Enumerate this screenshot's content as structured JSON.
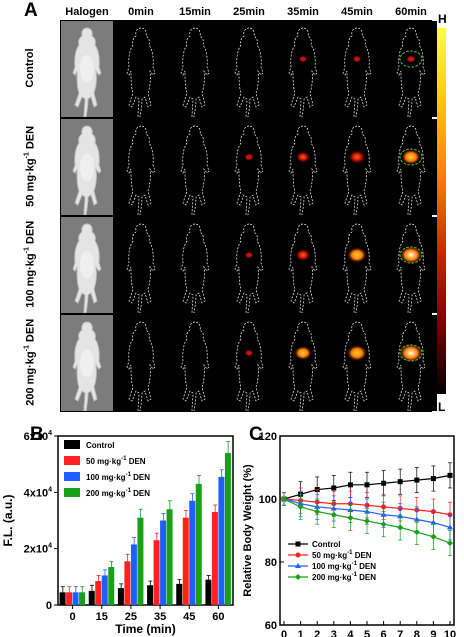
{
  "panel_a": {
    "letter": "A",
    "columns": [
      "Halogen",
      "0min",
      "15min",
      "25min",
      "35min",
      "45min",
      "60min"
    ],
    "rows": [
      {
        "label": "Control",
        "sup": "",
        "suffix": ""
      },
      {
        "label": "50 mg·kg",
        "sup": "-1",
        "suffix": " DEN"
      },
      {
        "label": "100 mg·kg",
        "sup": "-1",
        "suffix": " DEN"
      },
      {
        "label": "200 mg·kg",
        "sup": "-1",
        "suffix": " DEN"
      }
    ],
    "signal_levels": [
      [
        0,
        0,
        0,
        0.15,
        0.15,
        0.2
      ],
      [
        0,
        0,
        0.2,
        0.45,
        0.6,
        0.75
      ],
      [
        0,
        0,
        0.15,
        0.5,
        0.75,
        0.95
      ],
      [
        0,
        0,
        0.15,
        0.65,
        0.8,
        1.0
      ]
    ],
    "colorbar_high": "H",
    "colorbar_low": "L",
    "colors": {
      "dashed_circle": "#45c845",
      "outline": "#ffffff"
    }
  },
  "panel_b": {
    "letter": "B"
  },
  "panel_c": {
    "letter": "C"
  },
  "chart_data": [
    {
      "type": "bar",
      "categories": [
        "0",
        "15",
        "25",
        "35",
        "45",
        "60"
      ],
      "xlabel": "Time (min)",
      "ylabel": "F.L. (a.u.)",
      "ylim": [
        0,
        60000
      ],
      "yticks": [
        "0",
        "2x10",
        "4x10",
        "6x10"
      ],
      "ytick_exp": "4",
      "legend_placement": "top-left",
      "series": [
        {
          "name": "Control",
          "sup": "",
          "suffix": "",
          "color": "#000000",
          "values": [
            4500,
            5000,
            6000,
            7000,
            7500,
            9000
          ],
          "errors": [
            2000,
            2000,
            1500,
            1500,
            1500,
            1500
          ]
        },
        {
          "name": "50 mg·kg",
          "sup": "-1",
          "suffix": " DEN",
          "color": "#ff2020",
          "values": [
            4500,
            8500,
            15500,
            23000,
            31000,
            33000
          ],
          "errors": [
            2000,
            2000,
            2500,
            2500,
            2500,
            2500
          ]
        },
        {
          "name": "100 mg·kg",
          "sup": "-1",
          "suffix": " DEN",
          "color": "#1f5fff",
          "values": [
            4500,
            10500,
            21500,
            30000,
            37000,
            45500
          ],
          "errors": [
            2000,
            2000,
            2500,
            2500,
            2500,
            2500
          ]
        },
        {
          "name": "200 mg·kg",
          "sup": "-1",
          "suffix": " DEN",
          "color": "#18a018",
          "values": [
            4500,
            13500,
            31000,
            34000,
            43000,
            54000
          ],
          "errors": [
            2000,
            2000,
            3000,
            3000,
            3000,
            4000
          ]
        }
      ]
    },
    {
      "type": "line",
      "x": [
        0,
        1,
        2,
        3,
        4,
        5,
        6,
        7,
        8,
        9,
        10
      ],
      "xlabel": "Time (day)",
      "ylabel": "Relative Body Weight (%)",
      "ylim": [
        60,
        120
      ],
      "xlim": [
        0,
        10
      ],
      "yticks": [
        60,
        80,
        100,
        120
      ],
      "legend_placement": "bottom-left",
      "series": [
        {
          "name": "Control",
          "sup": "",
          "suffix": "",
          "color": "#000000",
          "marker": "square",
          "values": [
            100,
            101.5,
            103,
            103.5,
            104.5,
            104.5,
            105,
            105.5,
            106,
            106.5,
            107.5
          ],
          "errors": [
            2,
            4,
            4,
            4,
            4,
            4,
            4,
            4,
            4,
            4,
            4
          ]
        },
        {
          "name": "50 mg·kg",
          "sup": "-1",
          "suffix": " DEN",
          "color": "#ff2020",
          "marker": "circle",
          "values": [
            100,
            99.5,
            99,
            98.5,
            98.5,
            98,
            97.5,
            97,
            96.5,
            96,
            95
          ],
          "errors": [
            2,
            4,
            4,
            4,
            4,
            4,
            4,
            4,
            4,
            4,
            4
          ]
        },
        {
          "name": "100 mg·kg",
          "sup": "-1",
          "suffix": " DEN",
          "color": "#1f5fff",
          "marker": "triangle",
          "values": [
            100,
            98.5,
            97.5,
            97,
            96.5,
            96,
            95,
            94.5,
            93.5,
            92.5,
            91
          ],
          "errors": [
            2,
            4,
            4,
            4,
            4,
            4,
            4,
            4,
            4,
            4,
            4
          ]
        },
        {
          "name": "200 mg·kg",
          "sup": "-1",
          "suffix": " DEN",
          "color": "#18a018",
          "marker": "diamond",
          "values": [
            100,
            97.5,
            96,
            95,
            94,
            93,
            92,
            91,
            89.5,
            88,
            86
          ],
          "errors": [
            2,
            4,
            4,
            4,
            4,
            4,
            4,
            4,
            4,
            4,
            4
          ]
        }
      ]
    }
  ]
}
